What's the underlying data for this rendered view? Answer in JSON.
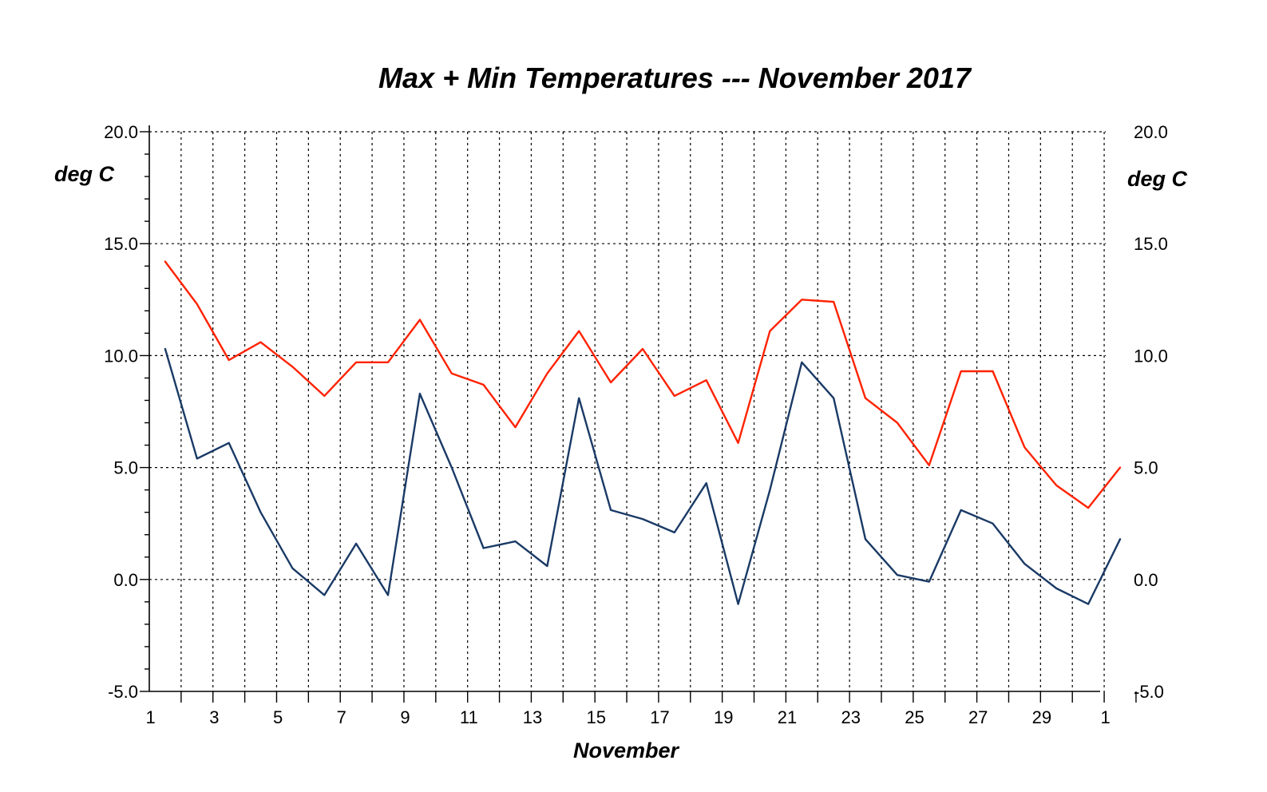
{
  "chart_data": {
    "type": "line",
    "title": "Max + Min Temperatures --- November 2017",
    "xlabel": "November",
    "ylabel": "deg C",
    "ylabel_right": "deg C",
    "xlim": [
      1,
      31.5
    ],
    "ylim": [
      -5,
      20
    ],
    "y_ticks": [
      "20.0",
      "15.0",
      "10.0",
      "5.0",
      "0.0",
      "-5.0"
    ],
    "x_ticks": [
      "1",
      "3",
      "5",
      "7",
      "9",
      "11",
      "13",
      "15",
      "17",
      "19",
      "21",
      "23",
      "25",
      "27",
      "29",
      "1"
    ],
    "grid": true,
    "x": [
      1.5,
      2.5,
      3.5,
      4.5,
      5.5,
      6.5,
      7.5,
      8.5,
      9.5,
      10.5,
      11.5,
      12.5,
      13.5,
      14.5,
      15.5,
      16.5,
      17.5,
      18.5,
      19.5,
      20.5,
      21.5,
      22.5,
      23.5,
      24.5,
      25.5,
      26.5,
      27.5,
      28.5,
      29.5,
      30.5,
      31.5
    ],
    "series": [
      {
        "color": "#ff2200",
        "values": [
          14.2,
          12.3,
          9.8,
          10.6,
          9.5,
          8.2,
          9.7,
          9.7,
          11.6,
          9.2,
          8.7,
          6.8,
          9.2,
          11.1,
          8.8,
          10.3,
          8.2,
          8.9,
          6.1,
          11.1,
          12.5,
          12.4,
          8.1,
          7.0,
          5.1,
          9.3,
          9.3,
          5.9,
          4.2,
          3.2,
          5.0
        ]
      },
      {
        "color": "#1a3a66",
        "values": [
          10.3,
          5.4,
          6.1,
          3.0,
          0.5,
          -0.7,
          1.6,
          -0.7,
          8.3,
          5.0,
          1.4,
          1.7,
          0.6,
          8.1,
          3.1,
          2.7,
          2.1,
          4.3,
          -1.1,
          4.0,
          9.7,
          8.1,
          1.8,
          0.2,
          -0.1,
          3.1,
          2.5,
          0.7,
          -0.4,
          -1.1,
          1.8
        ]
      }
    ]
  }
}
